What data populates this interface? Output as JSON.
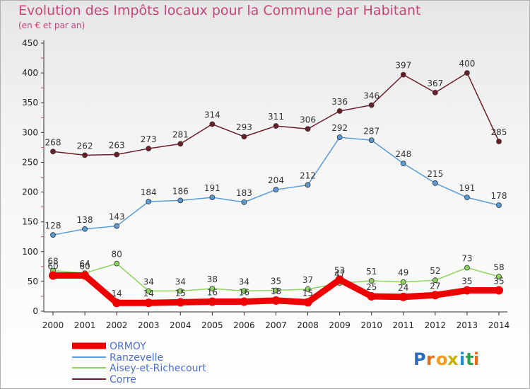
{
  "title": "Evolution des Impôts locaux pour la Commune par Habitant",
  "subtitle": "(en € et par an)",
  "logo": {
    "text": "Proxiti",
    "letters": [
      "P",
      "r",
      "o",
      "x",
      "i",
      "t",
      "i"
    ],
    "colors": [
      "#2a6cc0",
      "#e86a16",
      "#f39b14",
      "#c8b000",
      "#1d8ed8",
      "#2aa34a",
      "#e86a16"
    ]
  },
  "chart_data": {
    "type": "line",
    "x": [
      2000,
      2001,
      2002,
      2003,
      2004,
      2005,
      2006,
      2007,
      2008,
      2009,
      2010,
      2011,
      2012,
      2013,
      2014
    ],
    "ylim": [
      0,
      450
    ],
    "yticks": [
      0,
      50,
      100,
      150,
      200,
      250,
      300,
      350,
      400,
      450
    ],
    "grid": false,
    "legend_position": "bottom-left",
    "series": [
      {
        "name": "Corre",
        "color": "#6b1e2a",
        "values": [
          268,
          262,
          263,
          273,
          281,
          314,
          293,
          311,
          306,
          336,
          346,
          397,
          367,
          400,
          285
        ]
      },
      {
        "name": "Ranzevelle",
        "color": "#5b9bd5",
        "values": [
          128,
          138,
          143,
          184,
          186,
          191,
          183,
          204,
          212,
          292,
          287,
          248,
          215,
          191,
          178
        ]
      },
      {
        "name": "Aisey-et-Richecourt",
        "color": "#8cd45e",
        "values": [
          68,
          64,
          80,
          34,
          34,
          38,
          34,
          35,
          37,
          47,
          51,
          49,
          52,
          73,
          58
        ]
      },
      {
        "name": "ORMOY",
        "color": "#ee0000",
        "values": [
          60,
          60,
          14,
          14,
          15,
          16,
          16,
          18,
          15,
          53,
          25,
          24,
          27,
          35,
          35
        ]
      }
    ],
    "legend": [
      "ORMOY",
      "Ranzevelle",
      "Aisey-et-Richecourt",
      "Corre"
    ]
  }
}
